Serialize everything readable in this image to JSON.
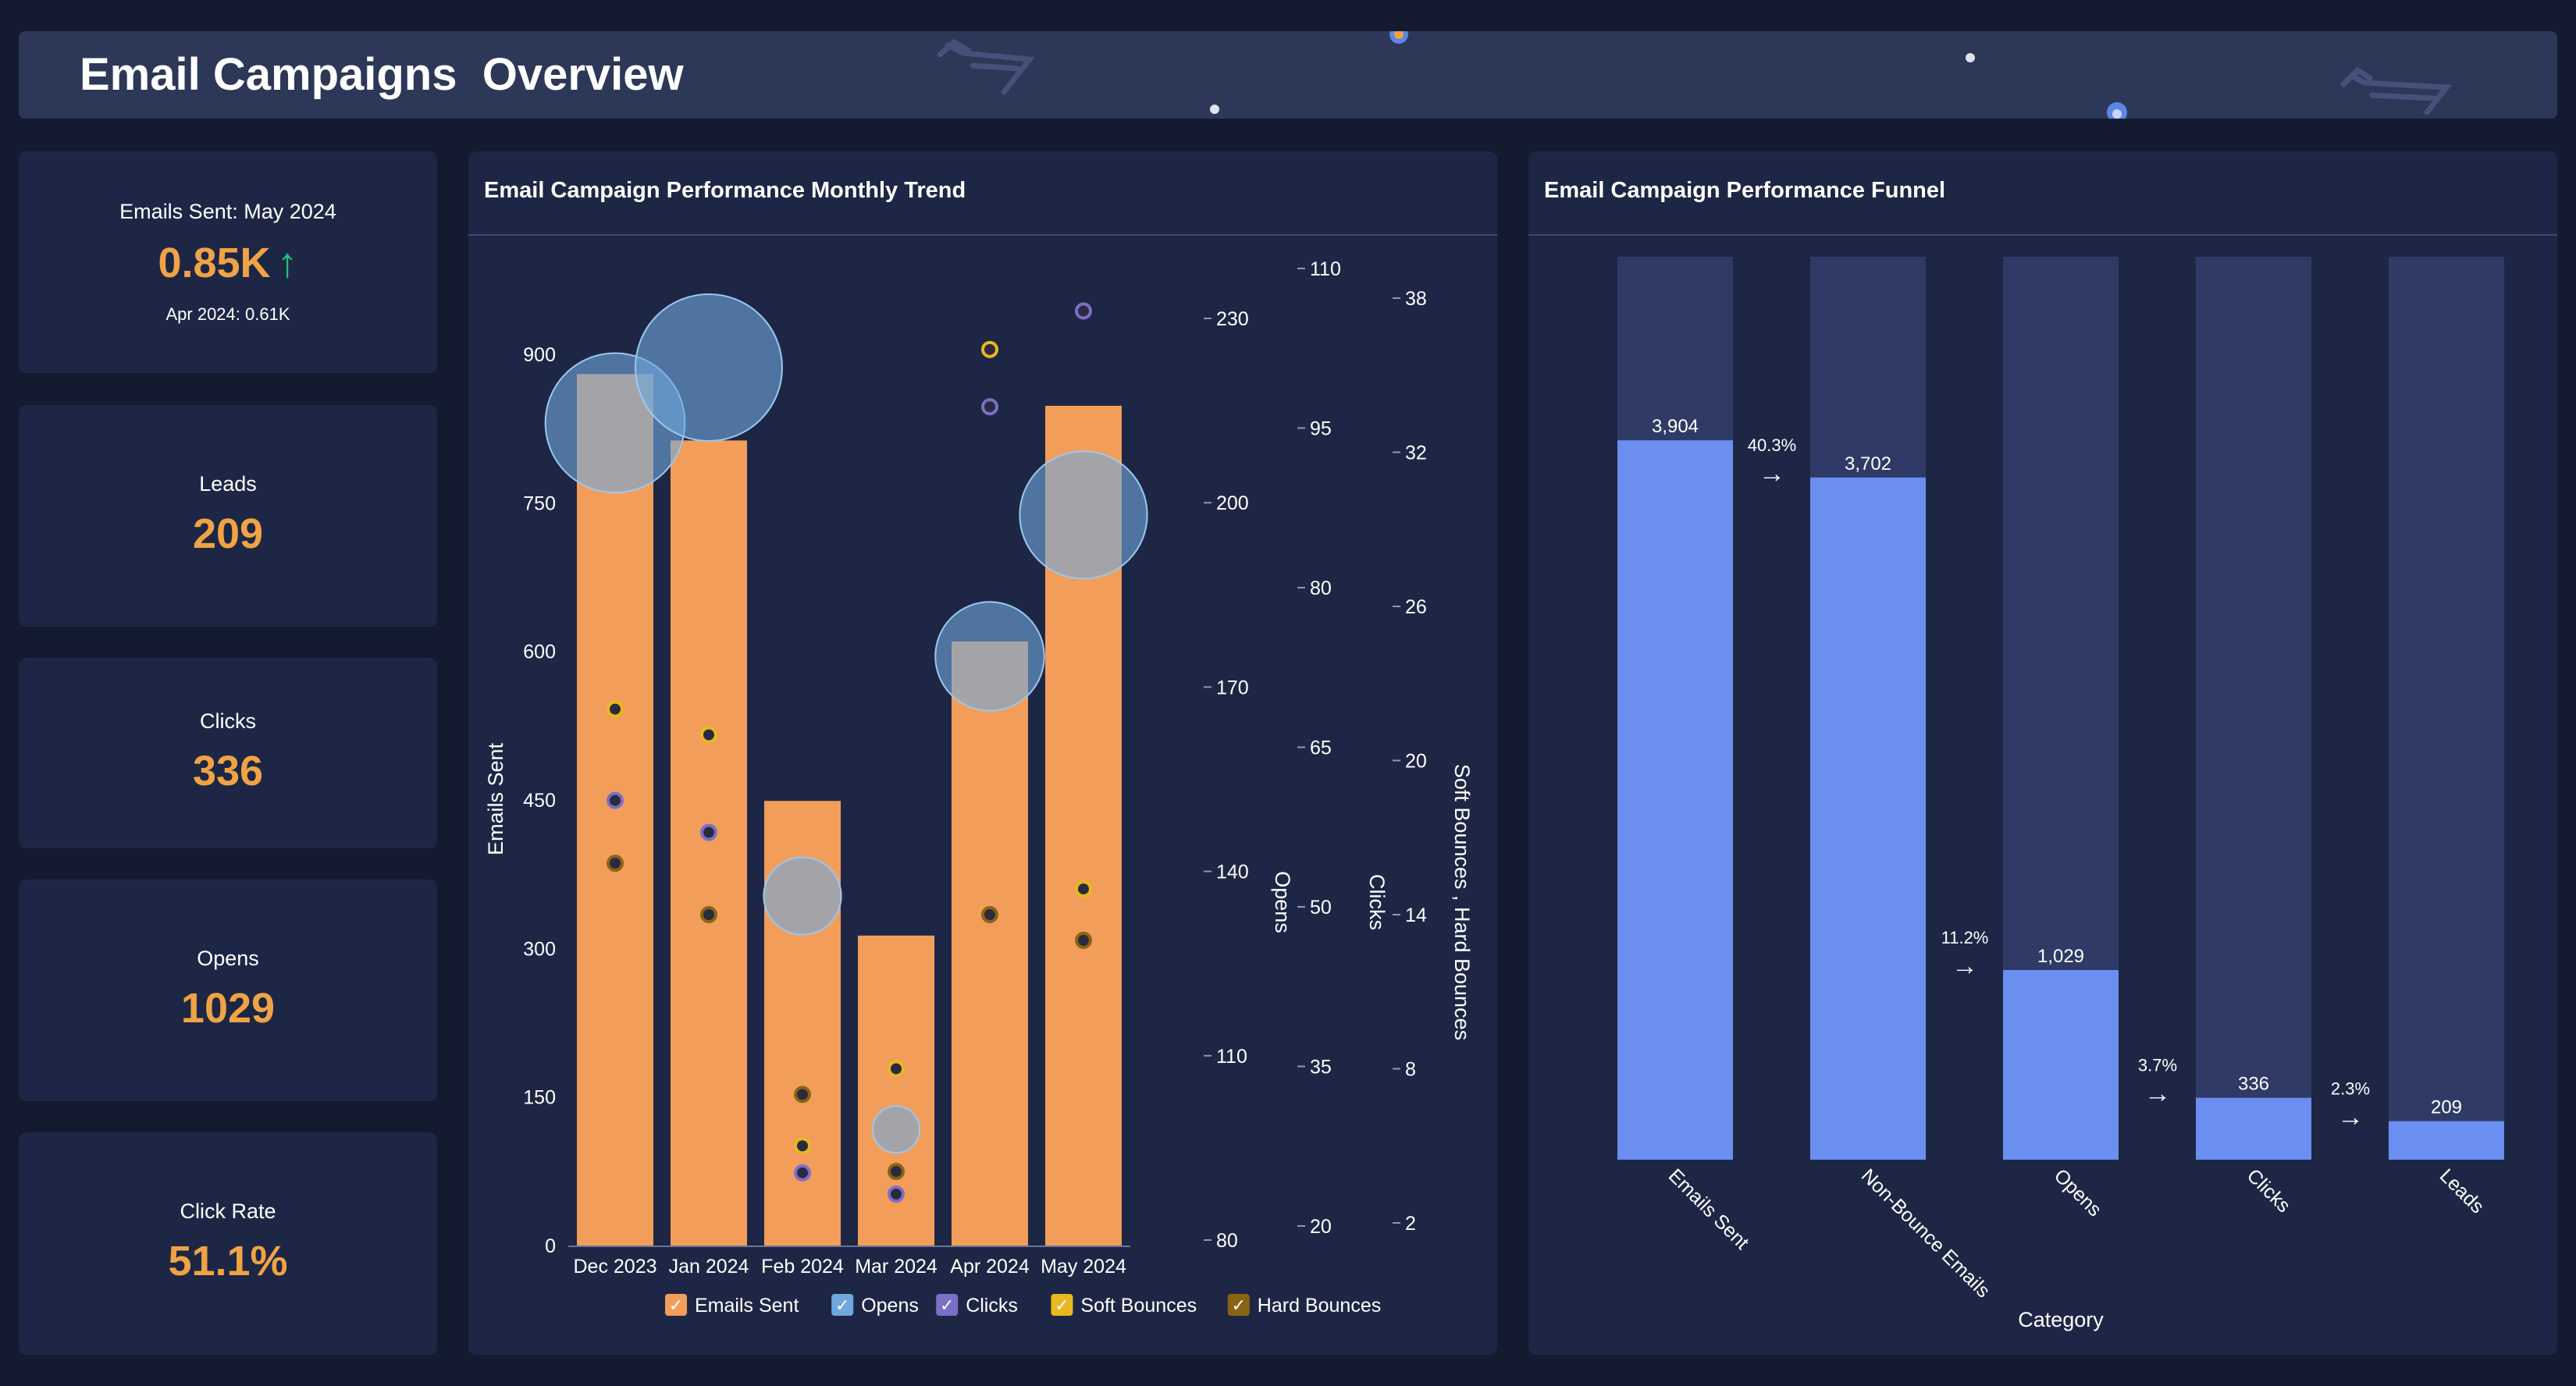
{
  "header": {
    "title": "Email Campaigns  Overview",
    "icon": "shopping-cart-icon"
  },
  "kpis": [
    {
      "label": "Emails Sent: May 2024",
      "value": "0.85K",
      "trend": "↑",
      "sub": "Apr 2024: 0.61K"
    },
    {
      "label": "Leads",
      "value": "209"
    },
    {
      "label": "Clicks",
      "value": "336"
    },
    {
      "label": "Opens",
      "value": "1029"
    },
    {
      "label": "Click Rate",
      "value": "51.1%"
    }
  ],
  "colors": {
    "emails_sent": "#f29e5a",
    "opens": "#6fa8dc",
    "clicks": "#7b6fc6",
    "soft_bounces": "#e8b820",
    "hard_bounces": "#8a6414",
    "funnel_bar": "#6b8ff0",
    "funnel_track": "#2f3b66",
    "kpi_value": "#f0a345",
    "trend_up": "#1fc27a"
  },
  "trend": {
    "title": "Email Campaign Performance Monthly Trend",
    "chart_data": {
      "type": "bar",
      "categories": [
        "Dec 2023",
        "Jan 2024",
        "Feb 2024",
        "Mar 2024",
        "Apr 2024",
        "May 2024"
      ],
      "series": [
        {
          "name": "Emails Sent",
          "type": "bar",
          "axis": "Emails Sent",
          "values": [
            880,
            813,
            449,
            313,
            610,
            848
          ]
        },
        {
          "name": "Opens",
          "type": "bubble",
          "axis": "Opens",
          "values": [
            213,
            222,
            136,
            98,
            175,
            198
          ]
        },
        {
          "name": "Clicks",
          "type": "scatter",
          "axis": "Clicks",
          "values": [
            60,
            57,
            25,
            23,
            97,
            106
          ]
        },
        {
          "name": "Soft Bounces",
          "type": "scatter",
          "axis": "Soft Bounces , Hard Bounces",
          "values": [
            22,
            21,
            5,
            8,
            36,
            15
          ]
        },
        {
          "name": "Hard Bounces",
          "type": "scatter",
          "axis": "Soft Bounces , Hard Bounces",
          "values": [
            16,
            14,
            7,
            4,
            14,
            13
          ]
        }
      ],
      "axes": [
        {
          "label": "Emails Sent",
          "ticks": [
            "0",
            "150",
            "300",
            "450",
            "600",
            "750",
            "900"
          ],
          "range": [
            0,
            900
          ]
        },
        {
          "label": "Opens",
          "ticks": [
            "80",
            "110",
            "140",
            "170",
            "200",
            "230"
          ],
          "range": [
            80,
            230
          ]
        },
        {
          "label": "Clicks",
          "ticks": [
            "20",
            "35",
            "50",
            "65",
            "80",
            "95",
            "110"
          ],
          "range": [
            20,
            110
          ]
        },
        {
          "label": "Soft Bounces , Hard Bounces",
          "ticks": [
            "2",
            "8",
            "14",
            "20",
            "26",
            "32",
            "38"
          ],
          "range": [
            2,
            38
          ]
        }
      ],
      "legend": [
        "Emails Sent",
        "Opens",
        "Clicks",
        "Soft Bounces",
        "Hard Bounces"
      ],
      "legend_position": "bottom",
      "grid": false
    }
  },
  "funnel": {
    "title": "Email Campaign Performance Funnel",
    "chart_data": {
      "type": "bar",
      "xlabel": "Category",
      "categories": [
        "Emails Sent",
        "Non-Bounce Emails",
        "Opens",
        "Clicks",
        "Leads"
      ],
      "values": [
        3904,
        3702,
        1029,
        336,
        209
      ],
      "value_labels": [
        "3,904",
        "3,702",
        "1,029",
        "336",
        "209"
      ],
      "conversion_rates": [
        "40.3%",
        "11.2%",
        "3.7%",
        "2.3%"
      ],
      "arrow": "→",
      "max": 4900
    }
  }
}
